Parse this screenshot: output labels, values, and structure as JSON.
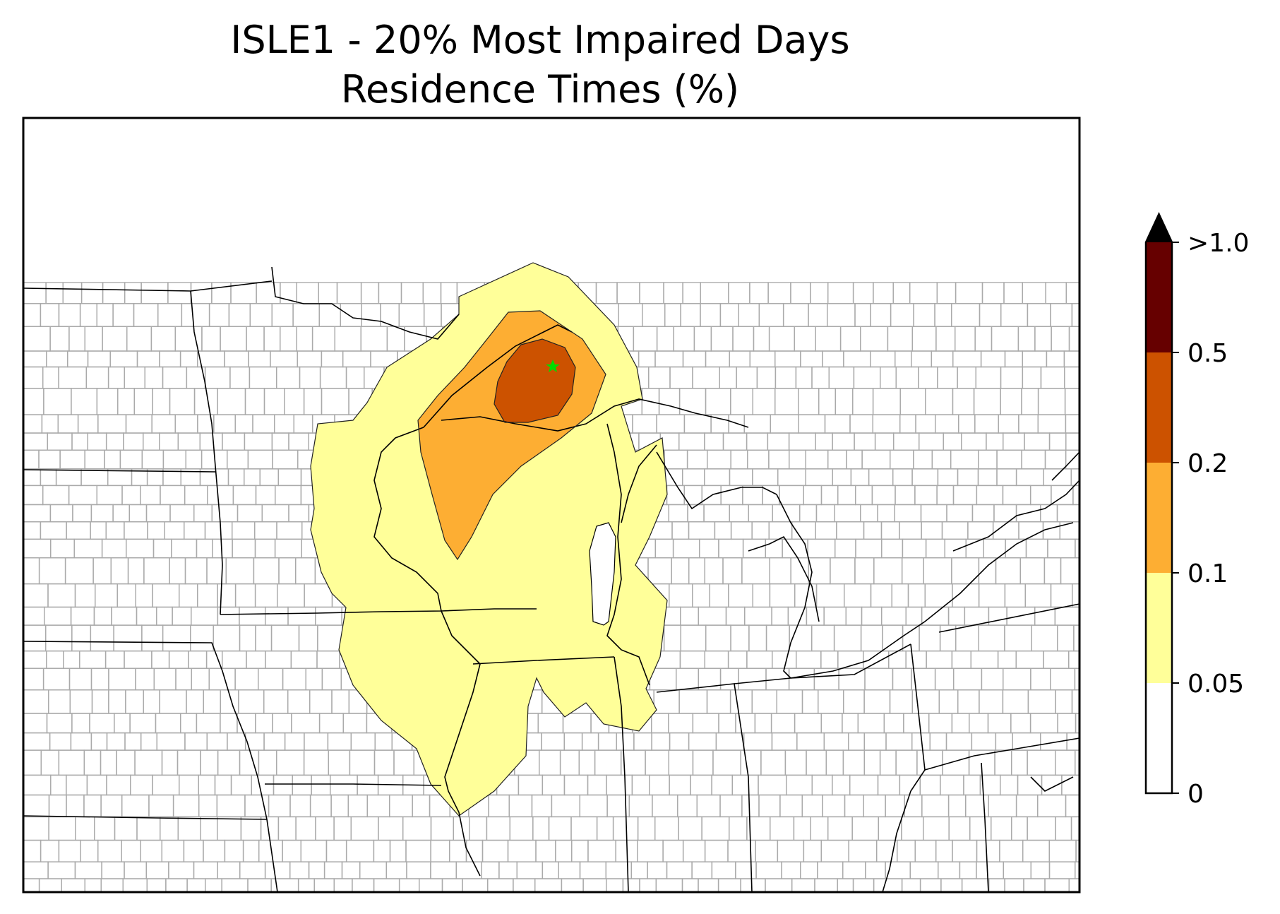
{
  "title": {
    "line1": "ISLE1 - 20% Most Impaired Days",
    "line2": "Residence Times (%)"
  },
  "site_marker": {
    "symbol": "star",
    "color": "#00dd00"
  },
  "colorbar": {
    "extend": "max",
    "levels": [
      {
        "label": "0",
        "color": "#ffffff"
      },
      {
        "label": "0.05",
        "color": "#ffff99"
      },
      {
        "label": "0.1",
        "color": "#fdae33"
      },
      {
        "label": "0.2",
        "color": "#cc5200"
      },
      {
        "label": "0.5",
        "color": "#660000"
      },
      {
        "label": ">1.0",
        "color": "#000000"
      }
    ]
  },
  "contour_fills": {
    "low": "#ffff99",
    "mid": "#fdae33",
    "high": "#cc5200"
  }
}
